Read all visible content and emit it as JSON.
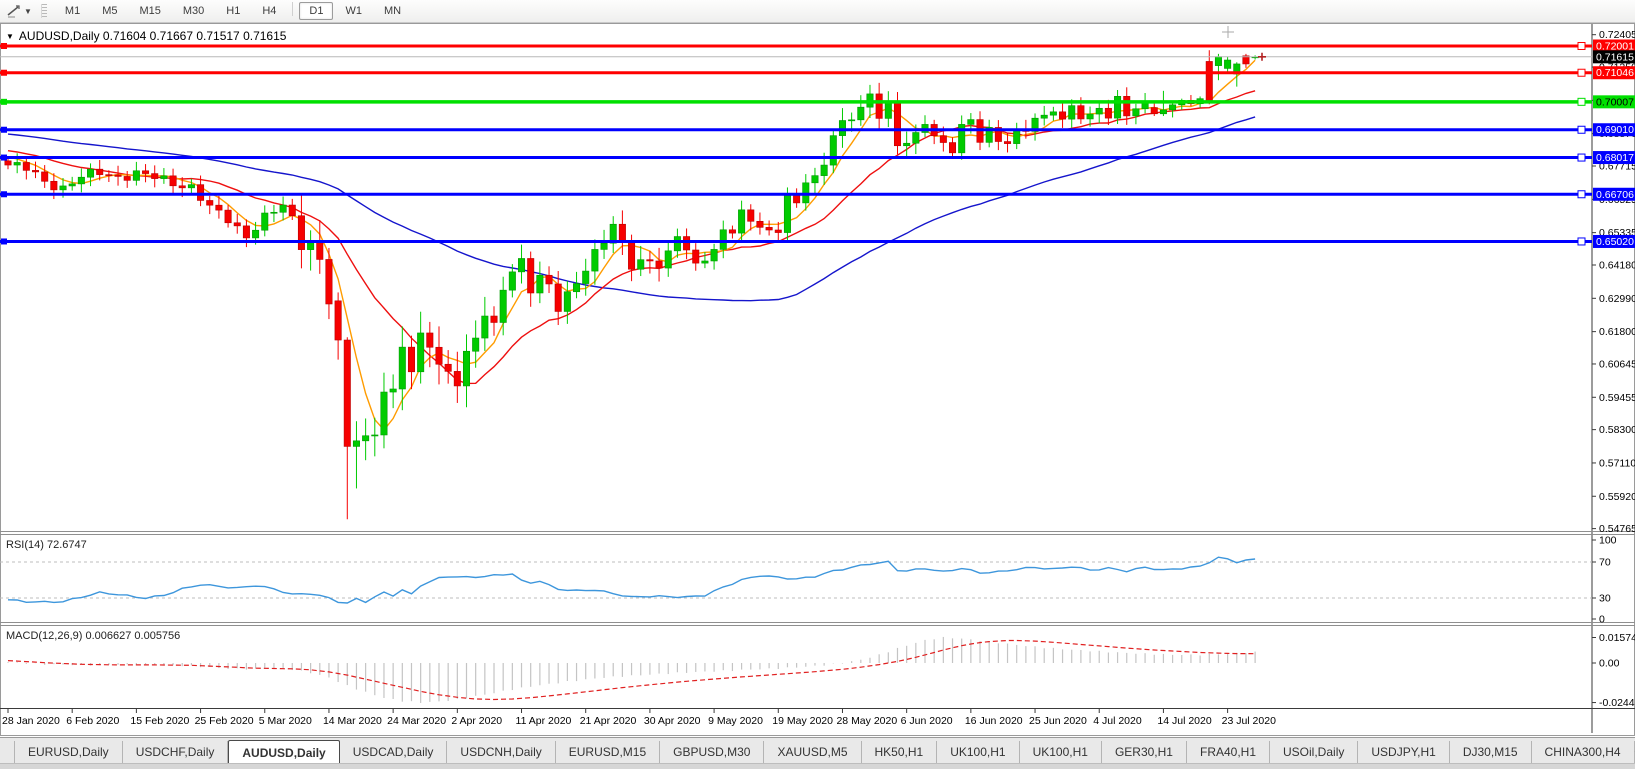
{
  "toolbar": {
    "tool_icon": "trendline-tool-icon",
    "buttons": [
      {
        "label": "M1"
      },
      {
        "label": "M5"
      },
      {
        "label": "M15"
      },
      {
        "label": "M30"
      },
      {
        "label": "H1"
      },
      {
        "label": "H4"
      },
      {
        "label": "D1"
      },
      {
        "label": "W1"
      },
      {
        "label": "MN"
      }
    ],
    "active": "D1"
  },
  "chart": {
    "title": "AUDUSD,Daily 0.71604 0.71667 0.71517 0.71615",
    "symbol": "AUDUSD",
    "period": "Daily",
    "ohlc": {
      "open": "0.71604",
      "high": "0.71667",
      "low": "0.71517",
      "close": "0.71615"
    }
  },
  "indicators": {
    "rsi_label": "RSI(14) 72.6747",
    "macd_label": "MACD(12,26,9) 0.006627 0.005756"
  },
  "chart_data": {
    "type": "candlestick",
    "symbol": "AUDUSD",
    "timeframe": "Daily",
    "title": "AUDUSD,Daily 0.71604 0.71667 0.71517 0.71615",
    "current_price": "0.71615",
    "y_ticks": [
      "0.72405",
      "0.71250",
      "0.70060",
      "0.68870",
      "0.67715",
      "0.66525",
      "0.65335",
      "0.64180",
      "0.62990",
      "0.61800",
      "0.60645",
      "0.59455",
      "0.58300",
      "0.57110",
      "0.55920",
      "0.54765"
    ],
    "price_lines": [
      {
        "label": "0.72001",
        "color": "#ff0000",
        "fg": "#ffffff",
        "width": 3
      },
      {
        "label": "0.71046",
        "color": "#ff0000",
        "fg": "#ffffff",
        "width": 3
      },
      {
        "label": "0.70007",
        "color": "#00e000",
        "fg": "#000000",
        "width": 3.5
      },
      {
        "label": "0.69010",
        "color": "#0000ff",
        "fg": "#ffffff",
        "width": 3
      },
      {
        "label": "0.68017",
        "color": "#0000ff",
        "fg": "#ffffff",
        "width": 3
      },
      {
        "label": "0.66706",
        "color": "#0000ff",
        "fg": "#ffffff",
        "width": 3
      },
      {
        "label": "0.65020",
        "color": "#0000ff",
        "fg": "#ffffff",
        "width": 3
      }
    ],
    "x_axis_dates": [
      "28 Jan 2020",
      "6 Feb 2020",
      "15 Feb 2020",
      "25 Feb 2020",
      "5 Mar 2020",
      "14 Mar 2020",
      "24 Mar 2020",
      "2 Apr 2020",
      "11 Apr 2020",
      "21 Apr 2020",
      "30 Apr 2020",
      "9 May 2020",
      "19 May 2020",
      "28 May 2020",
      "6 Jun 2020",
      "16 Jun 2020",
      "25 Jun 2020",
      "4 Jul 2020",
      "14 Jul 2020",
      "23 Jul 2020"
    ],
    "candles_per_label": 7,
    "candle_count": 137,
    "close_anchors": [
      [
        0,
        0.6775
      ],
      [
        2,
        0.676
      ],
      [
        4,
        0.6718
      ],
      [
        6,
        0.6695
      ],
      [
        8,
        0.673
      ],
      [
        10,
        0.6748
      ],
      [
        12,
        0.6735
      ],
      [
        14,
        0.6745
      ],
      [
        16,
        0.6728
      ],
      [
        18,
        0.6712
      ],
      [
        20,
        0.67
      ],
      [
        22,
        0.662
      ],
      [
        24,
        0.6578
      ],
      [
        26,
        0.6525
      ],
      [
        28,
        0.659
      ],
      [
        30,
        0.6625
      ],
      [
        31,
        0.658
      ],
      [
        32,
        0.649
      ],
      [
        33,
        0.6505
      ],
      [
        34,
        0.644
      ],
      [
        35,
        0.629
      ],
      [
        36,
        0.615
      ],
      [
        37,
        0.576
      ],
      [
        38,
        0.578
      ],
      [
        39,
        0.58
      ],
      [
        40,
        0.583
      ],
      [
        41,
        0.597
      ],
      [
        42,
        0.5965
      ],
      [
        43,
        0.613
      ],
      [
        44,
        0.602
      ],
      [
        45,
        0.617
      ],
      [
        46,
        0.614
      ],
      [
        47,
        0.606
      ],
      [
        48,
        0.605
      ],
      [
        49,
        0.599
      ],
      [
        50,
        0.609
      ],
      [
        51,
        0.616
      ],
      [
        52,
        0.623
      ],
      [
        53,
        0.621
      ],
      [
        54,
        0.635
      ],
      [
        55,
        0.639
      ],
      [
        56,
        0.644
      ],
      [
        57,
        0.632
      ],
      [
        58,
        0.636
      ],
      [
        59,
        0.6355
      ],
      [
        60,
        0.626
      ],
      [
        61,
        0.632
      ],
      [
        62,
        0.637
      ],
      [
        63,
        0.639
      ],
      [
        64,
        0.646
      ],
      [
        65,
        0.65
      ],
      [
        66,
        0.655
      ],
      [
        67,
        0.651
      ],
      [
        68,
        0.642
      ],
      [
        69,
        0.643
      ],
      [
        70,
        0.644
      ],
      [
        71,
        0.64
      ],
      [
        72,
        0.645
      ],
      [
        73,
        0.653
      ],
      [
        74,
        0.647
      ],
      [
        75,
        0.643
      ],
      [
        76,
        0.645
      ],
      [
        77,
        0.646
      ],
      [
        78,
        0.654
      ],
      [
        79,
        0.653
      ],
      [
        80,
        0.66
      ],
      [
        81,
        0.659
      ],
      [
        82,
        0.656
      ],
      [
        83,
        0.654
      ],
      [
        84,
        0.6545
      ],
      [
        85,
        0.665
      ],
      [
        86,
        0.663
      ],
      [
        87,
        0.672
      ],
      [
        88,
        0.673
      ],
      [
        89,
        0.679
      ],
      [
        90,
        0.689
      ],
      [
        91,
        0.692
      ],
      [
        92,
        0.694
      ],
      [
        93,
        0.697
      ],
      [
        94,
        0.702
      ],
      [
        95,
        0.696
      ],
      [
        96,
        0.7
      ],
      [
        97,
        0.685
      ],
      [
        98,
        0.686
      ],
      [
        99,
        0.687
      ],
      [
        100,
        0.692
      ],
      [
        101,
        0.688
      ],
      [
        102,
        0.685
      ],
      [
        103,
        0.684
      ],
      [
        104,
        0.692
      ],
      [
        105,
        0.693
      ],
      [
        106,
        0.686
      ],
      [
        107,
        0.689
      ],
      [
        108,
        0.686
      ],
      [
        109,
        0.6865
      ],
      [
        110,
        0.69
      ],
      [
        111,
        0.691
      ],
      [
        112,
        0.694
      ],
      [
        113,
        0.6935
      ],
      [
        114,
        0.697
      ],
      [
        115,
        0.693
      ],
      [
        116,
        0.699
      ],
      [
        117,
        0.696
      ],
      [
        118,
        0.695
      ],
      [
        119,
        0.698
      ],
      [
        120,
        0.694
      ],
      [
        121,
        0.7
      ],
      [
        122,
        0.696
      ],
      [
        123,
        0.698
      ],
      [
        124,
        0.7
      ]
    ],
    "candle_overrides": {
      "36": [
        0.629,
        0.632,
        0.608,
        0.615
      ],
      "37": [
        0.615,
        0.616,
        0.551,
        0.577
      ],
      "38": [
        0.577,
        0.586,
        0.562,
        0.579
      ],
      "125": [
        0.698,
        0.7,
        0.695,
        0.6958
      ],
      "126": [
        0.6958,
        0.704,
        0.695,
        0.6972
      ],
      "127": [
        0.6972,
        0.7,
        0.6945,
        0.699
      ],
      "128": [
        0.699,
        0.7012,
        0.6972,
        0.7006
      ],
      "129": [
        0.7006,
        0.7025,
        0.6985,
        0.6994
      ],
      "130": [
        0.6994,
        0.702,
        0.698,
        0.7012
      ],
      "131": [
        0.7145,
        0.7185,
        0.6992,
        0.7
      ],
      "132": [
        0.713,
        0.7172,
        0.7078,
        0.7162
      ],
      "133": [
        0.712,
        0.7162,
        0.7105,
        0.715
      ],
      "134": [
        0.71,
        0.7142,
        0.7055,
        0.7136
      ],
      "135": [
        0.7165,
        0.7172,
        0.7122,
        0.7136
      ],
      "136": [
        0.71604,
        0.71667,
        0.71517,
        0.71615
      ]
    },
    "ma_lead_in": {
      "count": 50,
      "start": 0.695,
      "mid": 0.69,
      "end": 0.68
    },
    "moving_averages": [
      {
        "name": "fast-ma",
        "window": 5,
        "color": "#ff9c00"
      },
      {
        "name": "medium-ma",
        "window": 15,
        "color": "#ee1010"
      },
      {
        "name": "slow-ma",
        "window": 50,
        "color": "#1515cc"
      }
    ],
    "rsi": {
      "value": 72.6747,
      "levels": [
        "100",
        "70",
        "30",
        "0"
      ],
      "dashed_levels": [
        70,
        30
      ],
      "color": "#3d96dc",
      "anchors": [
        [
          0,
          28
        ],
        [
          2,
          26
        ],
        [
          4,
          25.5
        ],
        [
          6,
          26
        ],
        [
          8,
          31
        ],
        [
          10,
          36
        ],
        [
          12,
          34
        ],
        [
          14,
          31
        ],
        [
          15,
          30
        ],
        [
          17,
          33
        ],
        [
          19,
          40
        ],
        [
          21,
          45
        ],
        [
          23,
          43
        ],
        [
          25,
          41
        ],
        [
          27,
          44
        ],
        [
          29,
          40
        ],
        [
          31,
          34
        ],
        [
          33,
          35
        ],
        [
          35,
          30
        ],
        [
          36,
          26
        ],
        [
          37,
          24
        ],
        [
          38,
          29
        ],
        [
          39,
          26
        ],
        [
          40,
          31
        ],
        [
          41,
          36
        ],
        [
          42,
          33
        ],
        [
          43,
          39
        ],
        [
          44,
          34
        ],
        [
          45,
          44
        ],
        [
          46,
          48
        ],
        [
          47,
          52
        ],
        [
          48,
          54
        ],
        [
          50,
          53
        ],
        [
          52,
          54
        ],
        [
          54,
          56
        ],
        [
          55,
          57
        ],
        [
          56,
          49
        ],
        [
          57,
          47
        ],
        [
          58,
          49
        ],
        [
          59,
          44
        ],
        [
          60,
          40
        ],
        [
          62,
          38
        ],
        [
          64,
          39
        ],
        [
          66,
          35
        ],
        [
          68,
          31
        ],
        [
          70,
          32
        ],
        [
          72,
          31.5
        ],
        [
          74,
          31
        ],
        [
          76,
          33
        ],
        [
          78,
          42
        ],
        [
          80,
          50
        ],
        [
          82,
          55
        ],
        [
          84,
          53
        ],
        [
          86,
          51
        ],
        [
          88,
          54
        ],
        [
          90,
          60
        ],
        [
          92,
          64
        ],
        [
          94,
          68
        ],
        [
          96,
          70
        ],
        [
          97,
          61
        ],
        [
          98,
          60
        ],
        [
          100,
          63
        ],
        [
          102,
          59
        ],
        [
          104,
          63
        ],
        [
          106,
          58
        ],
        [
          108,
          59
        ],
        [
          110,
          62
        ],
        [
          112,
          64
        ],
        [
          114,
          62
        ],
        [
          116,
          65
        ],
        [
          118,
          61
        ],
        [
          120,
          63
        ],
        [
          122,
          60
        ],
        [
          124,
          64
        ],
        [
          126,
          61
        ],
        [
          128,
          63
        ],
        [
          130,
          65
        ],
        [
          131,
          70
        ],
        [
          132,
          75
        ],
        [
          133,
          73
        ],
        [
          134,
          70
        ],
        [
          135,
          72
        ],
        [
          136,
          72.7
        ]
      ]
    },
    "macd": {
      "macd_value": 0.006627,
      "signal_value": 0.005756,
      "axis_labels": [
        "0.015745",
        "0.00",
        "-0.024415"
      ],
      "hist_color": "#c4c4c4",
      "signal_color": "#e02020",
      "anchors": [
        [
          0,
          0.0005,
          0.0015
        ],
        [
          4,
          -0.0008,
          0.0002
        ],
        [
          8,
          -0.0012,
          -0.0008
        ],
        [
          12,
          -0.001,
          -0.0012
        ],
        [
          16,
          -0.0012,
          -0.0012
        ],
        [
          20,
          -0.0018,
          -0.0014
        ],
        [
          24,
          -0.0035,
          -0.0024
        ],
        [
          27,
          -0.0038,
          -0.0032
        ],
        [
          29,
          -0.0032,
          -0.0034
        ],
        [
          31,
          -0.004,
          -0.0036
        ],
        [
          33,
          -0.006,
          -0.0042
        ],
        [
          35,
          -0.009,
          -0.0055
        ],
        [
          37,
          -0.014,
          -0.0075
        ],
        [
          39,
          -0.018,
          -0.01
        ],
        [
          41,
          -0.0215,
          -0.0125
        ],
        [
          43,
          -0.0235,
          -0.015
        ],
        [
          45,
          -0.0244,
          -0.0175
        ],
        [
          47,
          -0.0238,
          -0.0196
        ],
        [
          49,
          -0.0225,
          -0.0212
        ],
        [
          51,
          -0.0205,
          -0.0222
        ],
        [
          53,
          -0.0185,
          -0.0225
        ],
        [
          55,
          -0.0163,
          -0.0222
        ],
        [
          57,
          -0.0145,
          -0.0214
        ],
        [
          59,
          -0.013,
          -0.0203
        ],
        [
          61,
          -0.0115,
          -0.0191
        ],
        [
          63,
          -0.0102,
          -0.0178
        ],
        [
          65,
          -0.009,
          -0.0165
        ],
        [
          67,
          -0.0082,
          -0.0152
        ],
        [
          69,
          -0.0075,
          -0.014
        ],
        [
          71,
          -0.0068,
          -0.0129
        ],
        [
          73,
          -0.0061,
          -0.0118
        ],
        [
          75,
          -0.0056,
          -0.0108
        ],
        [
          77,
          -0.0051,
          -0.0099
        ],
        [
          79,
          -0.0046,
          -0.009
        ],
        [
          81,
          -0.004,
          -0.0082
        ],
        [
          83,
          -0.0036,
          -0.0074
        ],
        [
          85,
          -0.003,
          -0.0066
        ],
        [
          87,
          -0.0023,
          -0.0058
        ],
        [
          89,
          -0.0013,
          -0.0049
        ],
        [
          91,
          0.0,
          -0.0039
        ],
        [
          93,
          0.002,
          -0.0026
        ],
        [
          95,
          0.005,
          -0.001
        ],
        [
          97,
          0.009,
          0.001
        ],
        [
          99,
          0.0125,
          0.0035
        ],
        [
          100,
          0.014,
          0.005
        ],
        [
          101,
          0.015,
          0.0065
        ],
        [
          102,
          0.0157,
          0.008
        ],
        [
          103,
          0.0155,
          0.0094
        ],
        [
          104,
          0.015,
          0.0107
        ],
        [
          105,
          0.0145,
          0.0117
        ],
        [
          106,
          0.0138,
          0.0126
        ],
        [
          107,
          0.0132,
          0.0132
        ],
        [
          108,
          0.0125,
          0.0136
        ],
        [
          109,
          0.0118,
          0.0139
        ],
        [
          110,
          0.0112,
          0.0139
        ],
        [
          112,
          0.01,
          0.0135
        ],
        [
          114,
          0.009,
          0.0128
        ],
        [
          116,
          0.0082,
          0.0119
        ],
        [
          118,
          0.0075,
          0.011
        ],
        [
          120,
          0.0068,
          0.0101
        ],
        [
          122,
          0.0062,
          0.0092
        ],
        [
          124,
          0.0057,
          0.0084
        ],
        [
          126,
          0.0053,
          0.0077
        ],
        [
          128,
          0.005,
          0.0071
        ],
        [
          130,
          0.005,
          0.0065
        ],
        [
          132,
          0.0056,
          0.0061
        ],
        [
          134,
          0.0062,
          0.0058
        ],
        [
          136,
          0.00663,
          0.00576
        ]
      ]
    },
    "candle_up_color": "#00cb00",
    "candle_down_color": "#f60000"
  },
  "tabs": {
    "items": [
      {
        "label": "EURUSD,Daily"
      },
      {
        "label": "USDCHF,Daily"
      },
      {
        "label": "AUDUSD,Daily"
      },
      {
        "label": "USDCAD,Daily"
      },
      {
        "label": "USDCNH,Daily"
      },
      {
        "label": "EURUSD,M15"
      },
      {
        "label": "GBPUSD,M30"
      },
      {
        "label": "XAUUSD,M5"
      },
      {
        "label": "HK50,H1"
      },
      {
        "label": "UK100,H1"
      },
      {
        "label": "UK100,H1"
      },
      {
        "label": "GER30,H1"
      },
      {
        "label": "FRA40,H1"
      },
      {
        "label": "USOil,Daily"
      },
      {
        "label": "USDJPY,H1"
      },
      {
        "label": "DJ30,M15"
      },
      {
        "label": "CHINA300,H4"
      }
    ],
    "active_index": 2,
    "scroll_left": "◂",
    "scroll_right": "▸"
  }
}
